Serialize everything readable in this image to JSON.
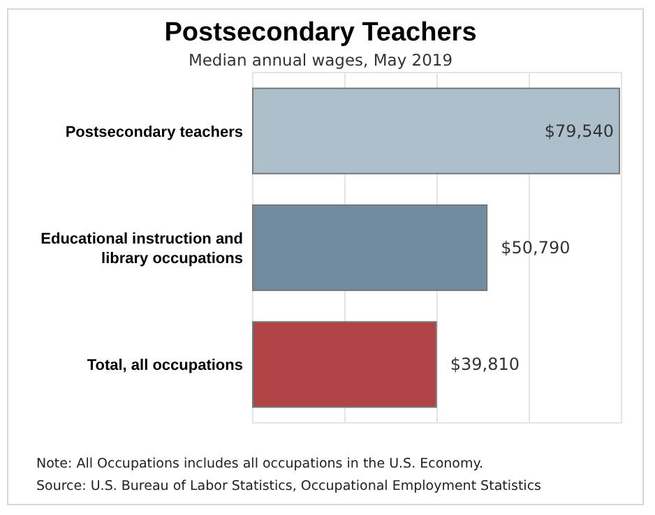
{
  "chart_data": {
    "type": "bar",
    "orientation": "horizontal",
    "title": "Postsecondary Teachers",
    "subtitle": "Median annual wages, May 2019",
    "categories": [
      "Postsecondary teachers",
      "Educational instruction and library occupations",
      "Total, all occupations"
    ],
    "values": [
      79540,
      50790,
      39810
    ],
    "colors": [
      "#adbfcb",
      "#718ca1",
      "#b34446"
    ],
    "value_labels": [
      "$79,540",
      "$50,790",
      "$39,810"
    ],
    "xlim": [
      0,
      80000
    ],
    "xticks": [
      {
        "value": 0,
        "label": null
      },
      {
        "value": 20000,
        "label": null
      },
      {
        "value": 40000,
        "label": null
      },
      {
        "value": 60000,
        "label": null
      },
      {
        "value": 80000,
        "label": null
      }
    ],
    "grid": "x",
    "tick_labels": "y",
    "annotations": [
      "Note: All Occupations includes all occupations in the U.S. Economy.",
      "Source: U.S. Bureau of Labor Statistics, Occupational Employment Statistics"
    ]
  }
}
